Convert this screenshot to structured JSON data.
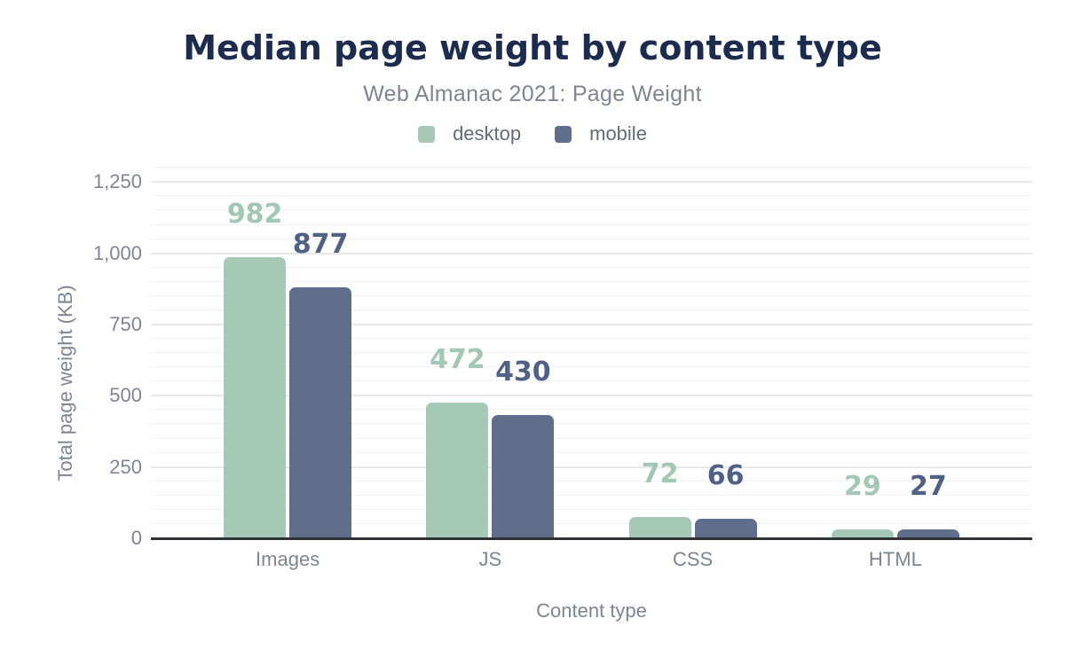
{
  "header": {
    "title": "Median page weight by content type",
    "subtitle": "Web Almanac 2021: Page Weight"
  },
  "legend": [
    {
      "label": "desktop",
      "color": "#a6c9b7"
    },
    {
      "label": "mobile",
      "color": "#5e6e8b"
    }
  ],
  "chart_data": {
    "type": "bar",
    "title": "Median page weight by content type",
    "subtitle": "Web Almanac 2021: Page Weight",
    "categories": [
      "Images",
      "JS",
      "CSS",
      "HTML"
    ],
    "series": [
      {
        "name": "desktop",
        "color": "#a6c9b7",
        "label_color": "#a2c7b3",
        "values": [
          982,
          472,
          72,
          29
        ]
      },
      {
        "name": "mobile",
        "color": "#5e6e8b",
        "label_color": "#4f6285",
        "values": [
          877,
          430,
          66,
          27
        ]
      }
    ],
    "xlabel": "Content type",
    "ylabel": "Total page weight (KB)",
    "ylim": [
      0,
      1307
    ],
    "yticks": [
      {
        "value": 0,
        "label": "0"
      },
      {
        "value": 250,
        "label": "250"
      },
      {
        "value": 500,
        "label": "500"
      },
      {
        "value": 750,
        "label": "750"
      },
      {
        "value": 1000,
        "label": "1,000"
      },
      {
        "value": 1250,
        "label": "1,250"
      }
    ],
    "minor_grid_step": 50,
    "major_grid_step": 250,
    "grid": true,
    "legend_position": "top"
  },
  "colors": {
    "title": "#1c2c4e",
    "muted_text": "#7e8592",
    "legend_text": "#636b77",
    "axis_line": "#2f3237",
    "grid_major": "#e7e8ea",
    "grid_minor": "#f1f2f4",
    "background": "#ffffff"
  }
}
